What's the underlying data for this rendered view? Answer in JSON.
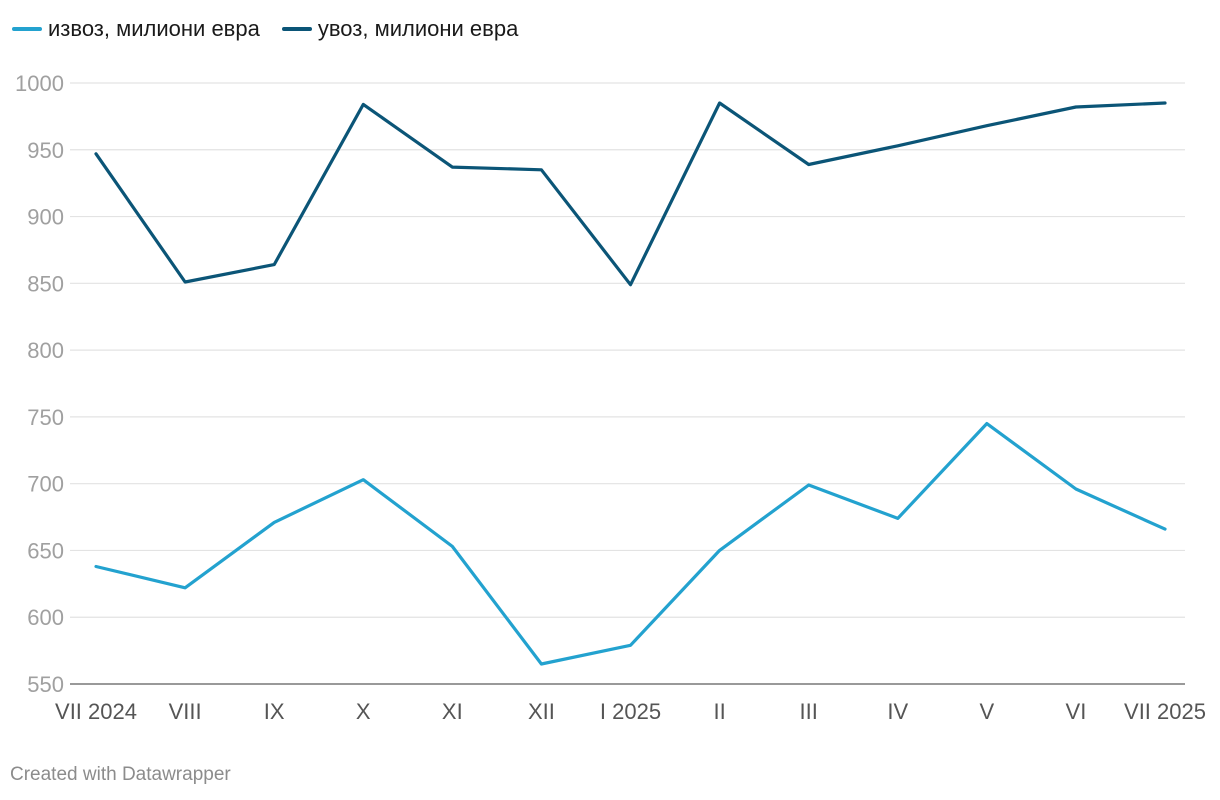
{
  "chart_data": {
    "type": "line",
    "categories": [
      "VII 2024",
      "VIII",
      "IX",
      "X",
      "XI",
      "XII",
      "I 2025",
      "II",
      "III",
      "IV",
      "V",
      "VI",
      "VII 2025"
    ],
    "series": [
      {
        "name": "извоз, милиони евра",
        "color": "#23a2cf",
        "values": [
          638,
          622,
          671,
          703,
          653,
          565,
          579,
          650,
          699,
          674,
          745,
          696,
          666
        ]
      },
      {
        "name": "увоз, милиони евра",
        "color": "#0b5577",
        "values": [
          947,
          851,
          864,
          984,
          937,
          935,
          849,
          985,
          939,
          953,
          968,
          982,
          985
        ]
      }
    ],
    "ylim": [
      550,
      1000
    ],
    "yticks": [
      550,
      600,
      650,
      700,
      750,
      800,
      850,
      900,
      950,
      1000
    ],
    "grid": true,
    "legend": "top-left"
  },
  "credit": "Created with Datawrapper"
}
